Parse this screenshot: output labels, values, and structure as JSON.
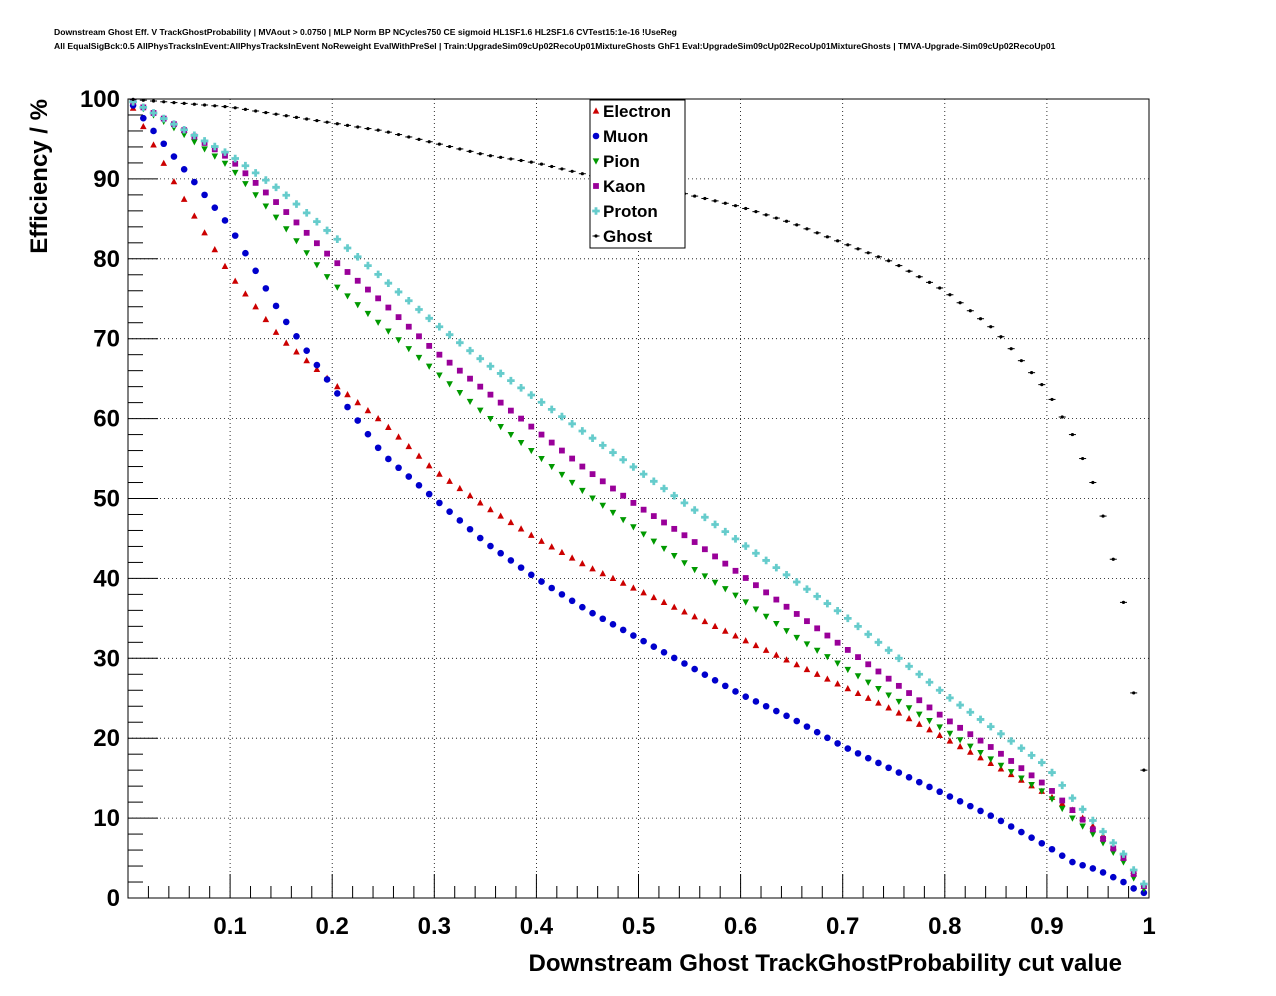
{
  "title_lines": [
    "Downstream Ghost Eff. V TrackGhostProbability | MVAout > 0.0750 | MLP Norm BP NCycles750 CE sigmoid HL1SF1.6 HL2SF1.6 CVTest15:1e-16 !UseReg",
    "All EqualSigBck:0.5 AllPhysTracksInEvent:AllPhysTracksInEvent NoReweight EvalWithPreSel | Train:UpgradeSim09cUp02RecoUp01MixtureGhosts GhF1 Eval:UpgradeSim09cUp02RecoUp01MixtureGhosts | TMVA-Upgrade-Sim09cUp02RecoUp01"
  ],
  "chart_data": {
    "type": "scatter",
    "xlabel": "Downstream Ghost TrackGhostProbability cut value",
    "ylabel": "Efficiency / %",
    "xlim": [
      0,
      1
    ],
    "ylim": [
      0,
      100
    ],
    "x_ticks": [
      0.1,
      0.2,
      0.3,
      0.4,
      0.5,
      0.6,
      0.7,
      0.8,
      0.9,
      1
    ],
    "x_tick_labels": [
      "0.1",
      "0.2",
      "0.3",
      "0.4",
      "0.5",
      "0.6",
      "0.7",
      "0.8",
      "0.9",
      "1"
    ],
    "y_ticks": [
      0,
      10,
      20,
      30,
      40,
      50,
      60,
      70,
      80,
      90,
      100
    ],
    "y_tick_labels": [
      "0",
      "10",
      "20",
      "30",
      "40",
      "50",
      "60",
      "70",
      "80",
      "90",
      "100"
    ],
    "grid": true,
    "legend_position": "top-center",
    "x_sample_points": [
      0,
      0.05,
      0.1,
      0.15,
      0.2,
      0.25,
      0.3,
      0.35,
      0.4,
      0.45,
      0.5,
      0.55,
      0.6,
      0.65,
      0.7,
      0.75,
      0.8,
      0.85,
      0.9,
      0.925,
      0.95,
      0.975,
      0.99,
      1.0
    ],
    "series": [
      {
        "name": "Electron",
        "color": "#cc0000",
        "marker": "triangle-up",
        "values": [
          100,
          88.5,
          78,
          70,
          64.5,
          59.5,
          53.5,
          49,
          45,
          41.5,
          38.5,
          35.5,
          32.5,
          29.5,
          26.5,
          23.5,
          20,
          16.5,
          13,
          11,
          8.5,
          5,
          2.5,
          0.5
        ]
      },
      {
        "name": "Muon",
        "color": "#0000cc",
        "marker": "circle",
        "values": [
          100,
          92,
          84,
          73,
          64,
          55.5,
          50,
          44.5,
          40,
          36,
          32.5,
          29,
          25.5,
          22.5,
          19,
          16,
          13,
          10,
          6.5,
          4.5,
          3.5,
          2,
          0.8,
          0.5
        ]
      },
      {
        "name": "Pion",
        "color": "#009900",
        "marker": "triangle-down",
        "values": [
          100,
          96,
          91.5,
          84.5,
          77,
          71.5,
          66,
          60.5,
          55.5,
          50.5,
          46,
          41.5,
          37.5,
          33,
          29,
          25,
          21,
          17,
          13,
          10,
          7.5,
          4.5,
          1.5,
          0.8
        ]
      },
      {
        "name": "Kaon",
        "color": "#990099",
        "marker": "square",
        "values": [
          100,
          96.5,
          92.5,
          86.5,
          80,
          74.5,
          68.5,
          63.5,
          58.5,
          53.5,
          49,
          45,
          40.5,
          36,
          31.5,
          27,
          22.5,
          18.5,
          14,
          11,
          8,
          5,
          2,
          1
        ]
      },
      {
        "name": "Proton",
        "color": "#66cccc",
        "marker": "cross",
        "values": [
          100,
          96.5,
          93,
          88.5,
          83,
          77.5,
          72,
          67,
          62.5,
          58,
          53.5,
          49,
          44.5,
          40,
          35.5,
          30.5,
          25.5,
          21,
          16.5,
          12.5,
          9,
          5.5,
          2.5,
          1
        ]
      },
      {
        "name": "Ghost",
        "color": "#000000",
        "marker": "point",
        "values": [
          100,
          99.5,
          99,
          98,
          97,
          96,
          94.5,
          93,
          92,
          90.5,
          89.5,
          88,
          86.5,
          84.5,
          82,
          79.5,
          76,
          71,
          63.5,
          58,
          50.5,
          37,
          20,
          12
        ]
      }
    ]
  }
}
